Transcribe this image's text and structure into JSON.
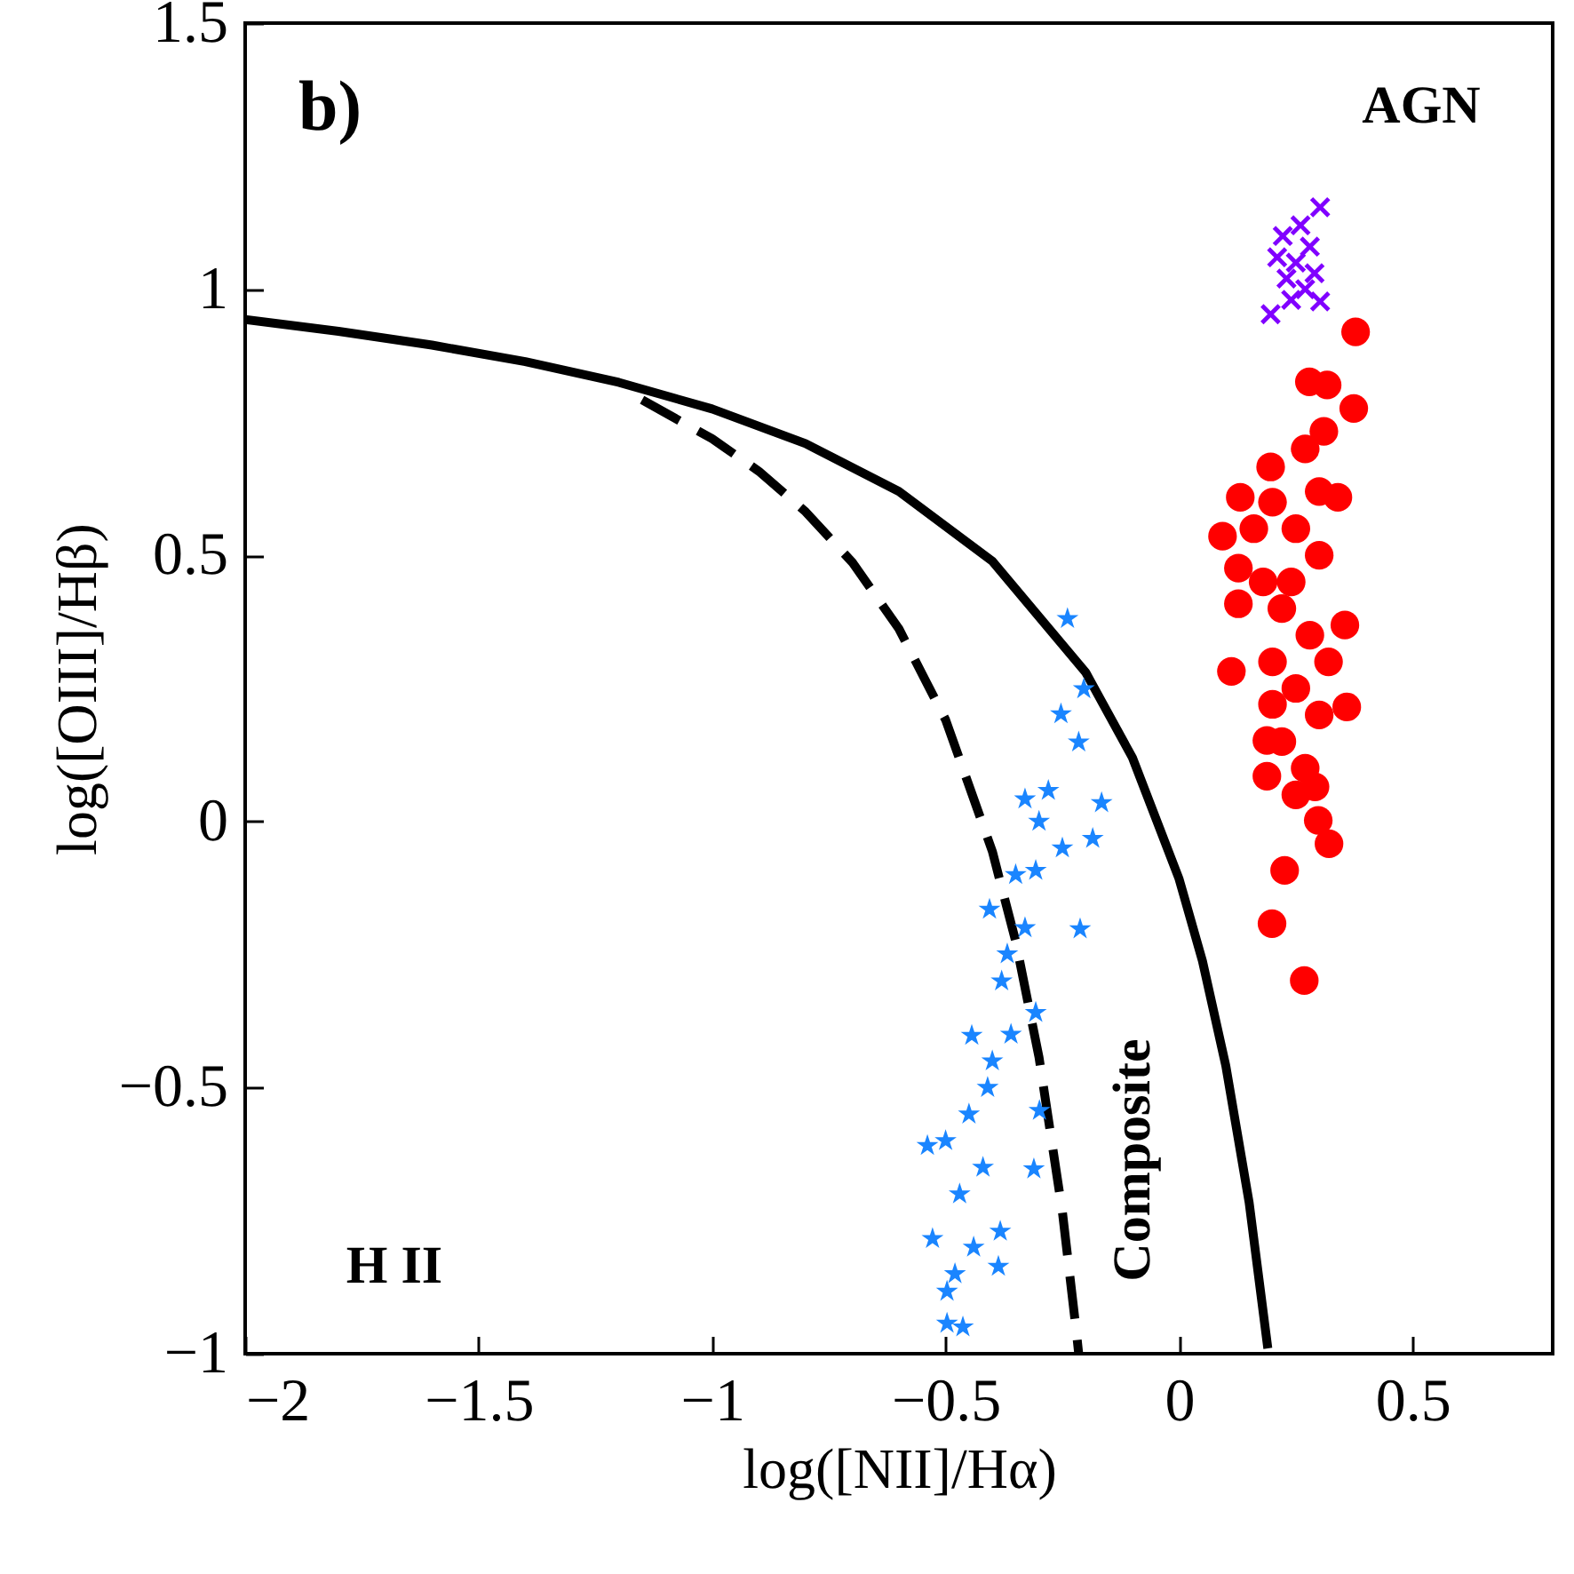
{
  "chart_data": {
    "type": "scatter",
    "xlabel": "log([NII]/Hα)",
    "ylabel": "log([OIII]/Hβ)",
    "xlim": [
      -2,
      0.8
    ],
    "ylim": [
      -1,
      1.5
    ],
    "xticks": [
      -2,
      -1.5,
      -1,
      -0.5,
      0,
      0.5
    ],
    "yticks": [
      -1,
      -0.5,
      0,
      0.5,
      1,
      1.5
    ],
    "grid": false,
    "annotations": [
      "b)",
      "AGN",
      "H II",
      "Composite"
    ],
    "series": [
      {
        "type": "line",
        "color": "#000000",
        "line_style": "solid",
        "x": [
          -2,
          -1.8,
          -1.6,
          -1.4,
          -1.2,
          -1.0,
          -0.8,
          -0.6,
          -0.4,
          -0.2,
          -0.1,
          0,
          0.05,
          0.1,
          0.15,
          0.19
        ],
        "values": [
          0.943,
          0.921,
          0.895,
          0.864,
          0.825,
          0.775,
          0.71,
          0.62,
          0.489,
          0.28,
          0.12,
          -0.108,
          -0.262,
          -0.459,
          -0.716,
          -0.99
        ]
      },
      {
        "type": "line",
        "color": "#000000",
        "line_style": "dashed",
        "x": [
          -1.15,
          -1.0,
          -0.9,
          -0.8,
          -0.7,
          -0.6,
          -0.5,
          -0.4,
          -0.35,
          -0.3,
          -0.25,
          -0.22,
          -0.215
        ],
        "values": [
          0.792,
          0.719,
          0.658,
          0.582,
          0.487,
          0.362,
          0.191,
          -0.056,
          -0.225,
          -0.443,
          -0.733,
          -0.959,
          -1.0
        ]
      },
      {
        "color": "#1a85ff",
        "marker": "star",
        "x": [
          -0.239,
          -0.204,
          -0.253,
          -0.215,
          -0.166,
          -0.33,
          -0.28,
          -0.185,
          -0.212,
          -0.406,
          -0.307,
          -0.368,
          -0.307,
          -0.444,
          -0.299,
          -0.539,
          -0.311,
          -0.383,
          -0.528,
          -0.497,
          -0.387,
          -0.463,
          -0.497,
          -0.35,
          -0.33,
          -0.38,
          -0.4,
          -0.45,
          -0.42,
          -0.47,
          -0.5,
          -0.44,
          -0.48,
          -0.3,
          -0.25,
          -0.36,
          -0.41
        ],
        "values": [
          0.381,
          0.249,
          0.202,
          0.149,
          0.035,
          0.042,
          0.058,
          -0.032,
          -0.202,
          -0.165,
          -0.092,
          -0.249,
          -0.359,
          -0.402,
          -0.543,
          -0.609,
          -0.653,
          -0.77,
          -0.784,
          -0.883,
          -0.836,
          -0.95,
          -0.943,
          -0.1,
          -0.2,
          -0.3,
          -0.45,
          -0.55,
          -0.65,
          -0.7,
          -0.6,
          -0.8,
          -0.85,
          0.0,
          -0.05,
          -0.4,
          -0.5
        ]
      },
      {
        "color": "#ff0000",
        "marker": "circle",
        "x": [
          0.378,
          0.279,
          0.374,
          0.317,
          0.093,
          0.131,
          0.196,
          0.31,
          0.34,
          0.127,
          0.127,
          0.355,
          0.112,
          0.359,
          0.188,
          0.188,
          0.291,
          0.298,
          0.321,
          0.226,
          0.199,
          0.268,
          0.2,
          0.25,
          0.3,
          0.18,
          0.22,
          0.28,
          0.2,
          0.25,
          0.3,
          0.22,
          0.27,
          0.24,
          0.3,
          0.27,
          0.16,
          0.2,
          0.32,
          0.25
        ],
        "values": [
          0.92,
          0.826,
          0.776,
          0.82,
          0.536,
          0.609,
          0.666,
          0.733,
          0.609,
          0.476,
          0.409,
          0.369,
          0.282,
          0.215,
          0.152,
          0.085,
          0.065,
          0.002,
          -0.042,
          -0.092,
          -0.192,
          -0.299,
          0.6,
          0.55,
          0.5,
          0.45,
          0.4,
          0.35,
          0.3,
          0.25,
          0.2,
          0.15,
          0.1,
          0.45,
          0.62,
          0.7,
          0.55,
          0.22,
          0.3,
          0.05
        ]
      },
      {
        "color": "#8000ff",
        "marker": "cross",
        "x": [
          0.302,
          0.196,
          0.302,
          0.222,
          0.25,
          0.27,
          0.23,
          0.28,
          0.26,
          0.24,
          0.29,
          0.21
        ],
        "values": [
          1.154,
          0.953,
          0.977,
          1.1,
          1.05,
          1.0,
          1.02,
          1.08,
          1.12,
          0.98,
          1.03,
          1.06
        ]
      }
    ]
  }
}
